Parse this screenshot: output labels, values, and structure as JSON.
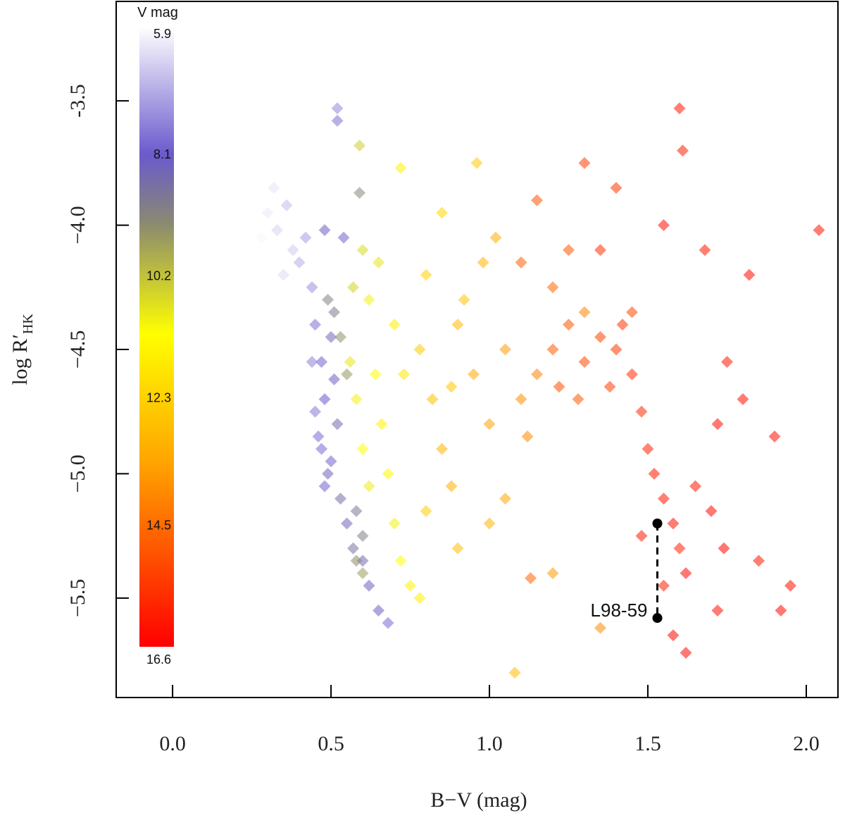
{
  "chart_data": {
    "type": "scatter",
    "xlabel": "B−V (mag)",
    "ylabel": {
      "main": "log R′",
      "sub": "HK"
    },
    "xlim": [
      -0.178,
      2.1
    ],
    "ylim": [
      -5.9,
      -3.1
    ],
    "xticks": [
      {
        "value": 0,
        "label": "0.0"
      },
      0.5,
      {
        "value": 1,
        "label": "1.0"
      },
      1.5,
      {
        "value": 2,
        "label": "2.0"
      }
    ],
    "yticks": [
      -3.5,
      {
        "value": -4,
        "label": "−4.0"
      },
      {
        "value": -4.5,
        "label": "−4.5"
      },
      {
        "value": -5,
        "label": "−5.0"
      },
      {
        "value": -5.5,
        "label": "−5.5"
      }
    ],
    "colorbar": {
      "label": "V mag",
      "clim": [
        5.9,
        16.6
      ],
      "ticks": [
        5.9,
        8.1,
        10.2,
        12.3,
        14.5,
        16.6
      ],
      "colorscale": [
        [
          5.9,
          "#ffffff"
        ],
        [
          8.1,
          "#6a5acd"
        ],
        [
          9.3,
          "#8a8a70"
        ],
        [
          11.2,
          "#ffff00"
        ],
        [
          13.4,
          "#ffa500"
        ],
        [
          16.6,
          "#ff0000"
        ]
      ]
    },
    "x": [
      0.3,
      0.33,
      0.36,
      0.38,
      0.4,
      0.35,
      0.42,
      0.28,
      0.32,
      0.44,
      0.45,
      0.47,
      0.48,
      0.46,
      0.49,
      0.5,
      0.51,
      0.52,
      0.5,
      0.53,
      0.55,
      0.57,
      0.6,
      0.62,
      0.65,
      0.68,
      0.44,
      0.45,
      0.47,
      0.52,
      0.52,
      0.48,
      0.54,
      0.58,
      0.6,
      0.48,
      0.51,
      0.49,
      0.53,
      0.55,
      0.58,
      0.6,
      0.59,
      0.56,
      0.58,
      0.6,
      0.62,
      0.64,
      0.66,
      0.68,
      0.7,
      0.72,
      0.75,
      0.62,
      0.65,
      0.6,
      0.7,
      0.73,
      0.59,
      0.72,
      0.78,
      0.57,
      0.78,
      0.82,
      0.85,
      0.88,
      0.9,
      0.95,
      1.0,
      1.05,
      1.1,
      0.8,
      0.92,
      0.98,
      1.02,
      0.85,
      0.96,
      1.08,
      0.9,
      1.0,
      1.05,
      0.8,
      1.2,
      1.35,
      1.3,
      1.15,
      1.12,
      0.88,
      1.2,
      1.25,
      1.3,
      1.35,
      1.4,
      1.45,
      1.48,
      1.5,
      1.52,
      1.55,
      1.58,
      1.6,
      1.62,
      1.65,
      1.7,
      1.22,
      1.28,
      1.38,
      1.42,
      1.45,
      1.15,
      1.3,
      1.4,
      1.1,
      1.25,
      1.6,
      1.61,
      1.55,
      1.68,
      1.75,
      1.82,
      1.8,
      2.04,
      1.72,
      1.74,
      1.9,
      1.92,
      1.95,
      1.85,
      1.58,
      1.62,
      1.72,
      1.35,
      1.48,
      1.55,
      1.13,
      1.2
    ],
    "y": [
      -3.95,
      -4.02,
      -3.92,
      -4.1,
      -4.15,
      -4.2,
      -4.05,
      -4.05,
      -3.85,
      -4.25,
      -4.4,
      -4.55,
      -4.7,
      -4.85,
      -5.0,
      -4.45,
      -4.62,
      -4.8,
      -4.95,
      -5.1,
      -5.2,
      -5.3,
      -5.35,
      -5.45,
      -5.55,
      -5.6,
      -4.55,
      -4.75,
      -4.9,
      -3.53,
      -3.58,
      -4.02,
      -4.05,
      -5.15,
      -5.25,
      -5.05,
      -4.35,
      -4.3,
      -4.45,
      -4.6,
      -5.35,
      -5.4,
      -3.87,
      -4.55,
      -4.7,
      -4.9,
      -5.05,
      -4.6,
      -4.8,
      -5.0,
      -5.2,
      -5.35,
      -5.45,
      -4.3,
      -4.15,
      -4.1,
      -4.4,
      -4.6,
      -3.68,
      -3.77,
      -5.5,
      -4.25,
      -4.5,
      -4.7,
      -4.9,
      -5.05,
      -4.4,
      -4.6,
      -4.8,
      -4.5,
      -4.7,
      -4.2,
      -4.3,
      -4.15,
      -4.05,
      -3.95,
      -3.75,
      -5.8,
      -5.3,
      -5.2,
      -5.1,
      -5.15,
      -5.4,
      -5.62,
      -4.35,
      -4.6,
      -4.85,
      -4.65,
      -4.5,
      -4.4,
      -4.55,
      -4.45,
      -4.5,
      -4.6,
      -4.75,
      -4.9,
      -5.0,
      -5.1,
      -5.2,
      -5.3,
      -5.4,
      -5.05,
      -5.15,
      -4.65,
      -4.7,
      -4.65,
      -4.4,
      -4.35,
      -3.9,
      -3.75,
      -3.85,
      -4.15,
      -4.1,
      -3.53,
      -3.7,
      -4.0,
      -4.1,
      -4.55,
      -4.2,
      -4.7,
      -4.02,
      -4.8,
      -5.3,
      -4.85,
      -5.55,
      -5.45,
      -5.35,
      -5.65,
      -5.72,
      -5.55,
      -4.1,
      -5.25,
      -5.45,
      -5.42,
      -4.25
    ],
    "vmag": [
      6.2,
      6.5,
      6.8,
      6.6,
      7.0,
      6.4,
      7.2,
      6.0,
      6.3,
      7.4,
      7.8,
      8.0,
      8.1,
      7.9,
      8.3,
      8.4,
      8.2,
      8.5,
      8.0,
      8.6,
      8.4,
      8.7,
      8.5,
      8.3,
      8.2,
      7.9,
      7.6,
      7.7,
      7.9,
      7.5,
      7.8,
      8.2,
      8.0,
      8.8,
      9.0,
      8.0,
      8.9,
      9.1,
      9.4,
      9.5,
      9.3,
      9.6,
      9.2,
      10.8,
      11.0,
      11.2,
      10.9,
      11.3,
      11.5,
      11.4,
      11.0,
      11.2,
      11.5,
      11.0,
      10.8,
      10.6,
      11.6,
      11.8,
      10.4,
      11.5,
      11.6,
      10.5,
      12.5,
      12.8,
      13.0,
      13.2,
      12.9,
      13.3,
      13.5,
      13.6,
      13.8,
      12.3,
      12.7,
      13.0,
      13.2,
      12.2,
      12.5,
      12.9,
      12.8,
      13.0,
      13.4,
      12.4,
      13.6,
      13.9,
      14.0,
      14.1,
      14.0,
      12.6,
      14.8,
      15.0,
      15.2,
      15.3,
      15.5,
      15.7,
      15.8,
      16.0,
      16.1,
      16.2,
      16.3,
      16.0,
      16.4,
      16.2,
      16.4,
      15.1,
      14.9,
      15.4,
      15.6,
      15.2,
      15.0,
      15.4,
      15.6,
      14.8,
      15.0,
      16.2,
      16.0,
      16.3,
      16.1,
      16.2,
      16.4,
      16.3,
      16.2,
      16.4,
      16.5,
      16.3,
      16.4,
      16.3,
      16.2,
      16.5,
      16.4,
      16.3,
      15.7,
      16.1,
      16.0,
      14.7,
      14.6
    ],
    "annotation": {
      "label": "L98-59",
      "x": 1.53,
      "y": [
        -5.2,
        -5.58
      ]
    }
  }
}
